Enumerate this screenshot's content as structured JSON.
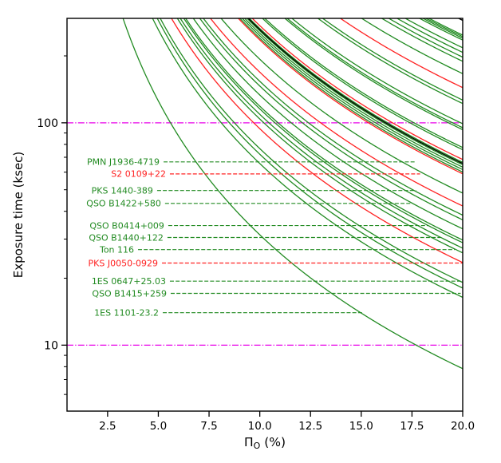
{
  "figure": {
    "background": "#ffffff"
  },
  "chart_data": {
    "type": "line",
    "title": "",
    "xlabel": "Π_O (%)",
    "xlabel_parts": {
      "main": "Π",
      "sub": "O",
      "suffix": " (%)"
    },
    "ylabel": "Exposure  time (ksec)",
    "xscale": "linear",
    "yscale": "log",
    "xlim": [
      0.5,
      20
    ],
    "ylim": [
      5.05,
      295
    ],
    "grid": false,
    "legend": false,
    "xticks": {
      "values": [
        2.5,
        5.0,
        7.5,
        10.0,
        12.5,
        15.0,
        17.5,
        20.0
      ],
      "labels": [
        "2.5",
        "5.0",
        "7.5",
        "10.0",
        "12.5",
        "15.0",
        "17.5",
        "20.0"
      ]
    },
    "yticks": {
      "values": [
        10,
        100
      ],
      "labels": [
        "10",
        "100"
      ]
    },
    "y_minor_ticks": [
      6,
      7,
      8,
      9,
      20,
      30,
      40,
      50,
      60,
      70,
      80,
      90,
      200
    ],
    "colors": {
      "green": "#228B22",
      "red": "#ff2222",
      "black": "#000000",
      "magenta": "#e800e8",
      "axis": "#000000"
    },
    "reference_lines": [
      {
        "y": 100,
        "color": "magenta",
        "style": "dashdot"
      },
      {
        "y": 10,
        "color": "magenta",
        "style": "dashdot"
      }
    ],
    "curve_model": "exposure_ksec(x) = 100 * (p100 / x)^2  (p100 = polarization % where curve crosses 100 ksec)",
    "curves": {
      "green": [
        5.6,
        8.1,
        8.5,
        8.75,
        10.2,
        10.45,
        10.75,
        10.9,
        11.55,
        12.1,
        12.4,
        13.9,
        15.5,
        15.7,
        15.9,
        16.1,
        16.3,
        17.4,
        17.6,
        19.3,
        19.5,
        19.9,
        22.1,
        22.5,
        25.8,
        27.5,
        28.1,
        28.8,
        29.5,
        30.7,
        31.0,
        31.25,
        31.5
      ],
      "red": [
        9.7,
        13.0,
        15.36,
        16.54,
        24.0
      ],
      "black": [
        16.2,
        34.0
      ]
    },
    "sources": [
      {
        "label": "PMN J1936-4719",
        "color": "green",
        "exposure_ksec": 66.7,
        "line_start_x": 5.26,
        "line_end_x": 17.7
      },
      {
        "label": "S2 0109+22",
        "color": "red",
        "exposure_ksec": 58.9,
        "line_start_x": 5.57,
        "line_end_x": 17.9
      },
      {
        "label": "PKS 1440-389",
        "color": "green",
        "exposure_ksec": 49.6,
        "line_start_x": 4.94,
        "line_end_x": 17.7
      },
      {
        "label": "QSO B1422+580",
        "color": "green",
        "exposure_ksec": 43.4,
        "line_start_x": 5.33,
        "line_end_x": 17.5
      },
      {
        "label": "QSO B0414+009",
        "color": "green",
        "exposure_ksec": 34.5,
        "line_start_x": 5.49,
        "line_end_x": 18.3
      },
      {
        "label": "QSO B1440+122",
        "color": "green",
        "exposure_ksec": 30.5,
        "line_start_x": 5.45,
        "line_end_x": 18.9
      },
      {
        "label": "Ton 116",
        "color": "green",
        "exposure_ksec": 26.9,
        "line_start_x": 4.0,
        "line_end_x": 19.6
      },
      {
        "label": "PKS J0050-0929",
        "color": "red",
        "exposure_ksec": 23.4,
        "line_start_x": 5.18,
        "line_end_x": 20.0
      },
      {
        "label": "1ES 0647+25.03",
        "color": "green",
        "exposure_ksec": 19.4,
        "line_start_x": 5.57,
        "line_end_x": 19.9
      },
      {
        "label": "QSO B1415+259",
        "color": "green",
        "exposure_ksec": 17.1,
        "line_start_x": 5.61,
        "line_end_x": 19.9
      },
      {
        "label": "1ES 1101-23.2",
        "color": "green",
        "exposure_ksec": 14.0,
        "line_start_x": 5.22,
        "line_end_x": 15.1
      }
    ]
  }
}
